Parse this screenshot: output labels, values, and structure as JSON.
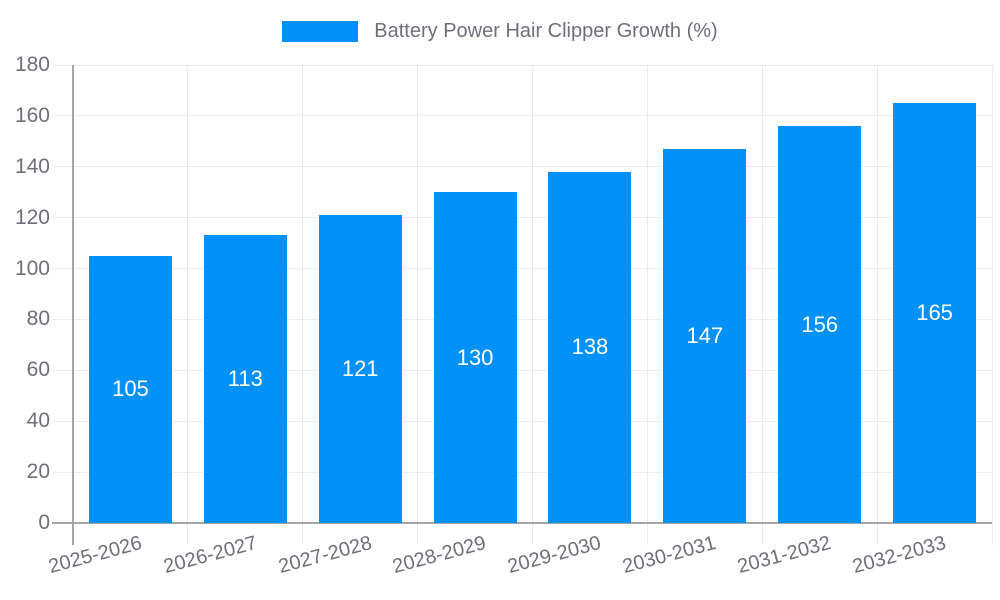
{
  "chart_data": {
    "type": "bar",
    "legend_label": "Battery Power Hair Clipper Growth (%)",
    "categories": [
      "2025-2026",
      "2026-2027",
      "2027-2028",
      "2028-2029",
      "2029-2030",
      "2030-2031",
      "2031-2032",
      "2032-2033"
    ],
    "values": [
      105,
      113,
      121,
      130,
      138,
      147,
      156,
      165
    ],
    "ylim": [
      0,
      180
    ],
    "y_tick_step": 20,
    "y_tick_labels": [
      "0",
      "20",
      "40",
      "60",
      "80",
      "100",
      "120",
      "140",
      "160",
      "180"
    ],
    "grid": true,
    "legend_position": "top-center",
    "x_label_rotation_deg": -15,
    "colors": {
      "bar": "#0290F9",
      "value_label": "#FFFFFF",
      "axis_line": "#A5A5A5",
      "grid_line": "#EAEAEC",
      "tick_label": "#6E7079",
      "legend_text": "#6E7079",
      "background": "#FFFFFF"
    }
  }
}
